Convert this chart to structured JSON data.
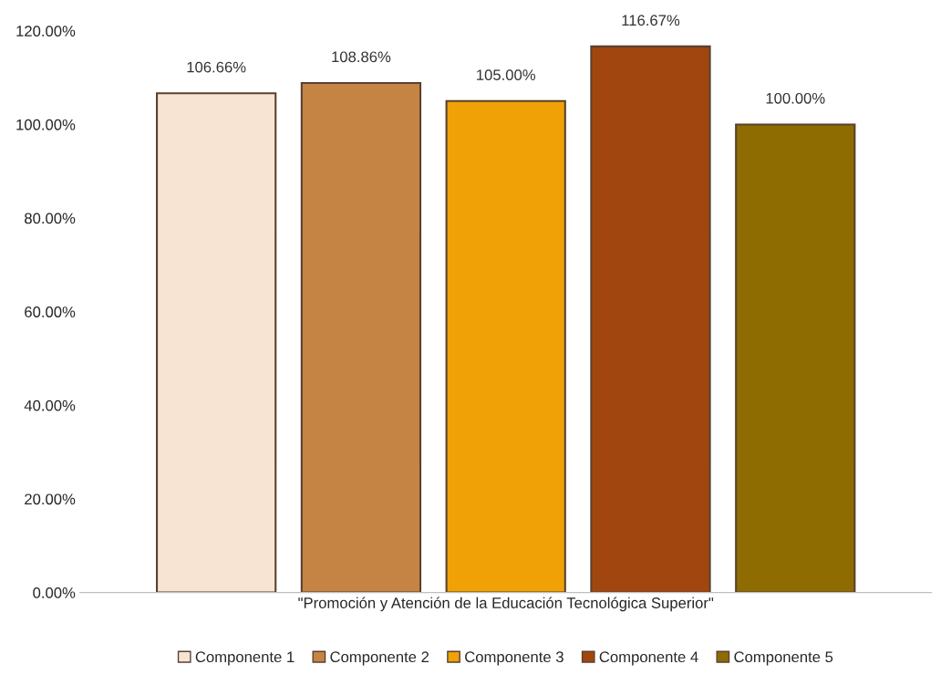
{
  "chart_data": {
    "type": "bar",
    "categories": [
      "\"Promoción y Atención de la Educación Tecnológica Superior\""
    ],
    "series": [
      {
        "name": "Componente 1",
        "color": "#f7e4d2",
        "values": [
          106.66
        ],
        "value_labels": [
          "106.66%"
        ]
      },
      {
        "name": "Componente 2",
        "color": "#c58443",
        "values": [
          108.86
        ],
        "value_labels": [
          "108.86%"
        ]
      },
      {
        "name": "Componente 3",
        "color": "#efa106",
        "values": [
          105.0
        ],
        "value_labels": [
          "105.00%"
        ]
      },
      {
        "name": "Componente 4",
        "color": "#a2460f",
        "values": [
          116.67
        ],
        "value_labels": [
          "116.67%"
        ]
      },
      {
        "name": "Componente 5",
        "color": "#8e6c02",
        "values": [
          100.0
        ],
        "value_labels": [
          "100.00%"
        ]
      }
    ],
    "ylim": [
      0,
      120
    ],
    "yticks": [
      {
        "value": 0,
        "label": "0.00%"
      },
      {
        "value": 20,
        "label": "20.00%"
      },
      {
        "value": 40,
        "label": "40.00%"
      },
      {
        "value": 60,
        "label": "60.00%"
      },
      {
        "value": 80,
        "label": "80.00%"
      },
      {
        "value": 100,
        "label": "100.00%"
      },
      {
        "value": 120,
        "label": "120.00%"
      }
    ],
    "grid": false,
    "legend": "bottom"
  }
}
